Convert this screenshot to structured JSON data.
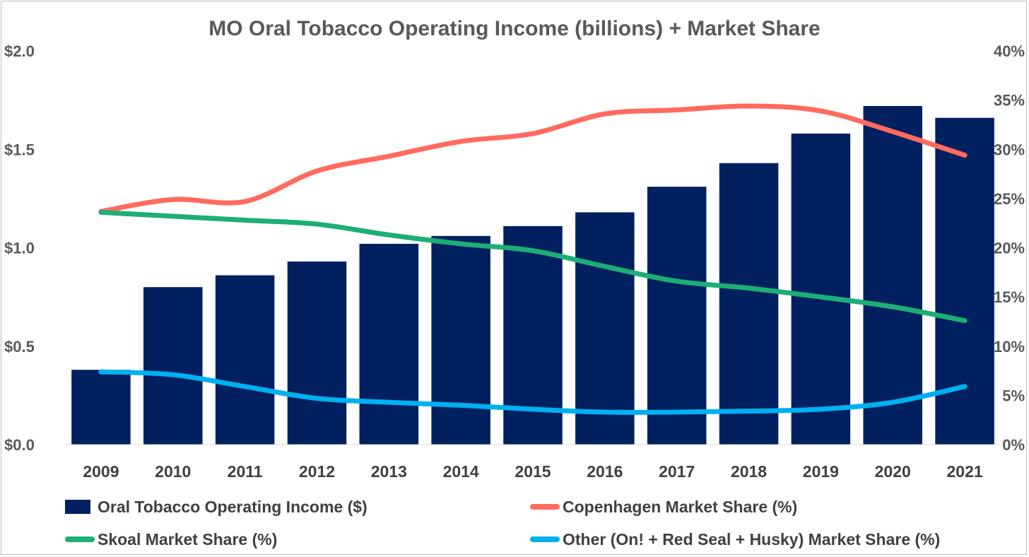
{
  "chart_data": {
    "type": "bar",
    "title": "MO Oral Tobacco Operating Income (billions) + Market Share",
    "categories": [
      "2009",
      "2010",
      "2011",
      "2012",
      "2013",
      "2014",
      "2015",
      "2016",
      "2017",
      "2018",
      "2019",
      "2020",
      "2021"
    ],
    "y_left": {
      "ylim": [
        0,
        2.0
      ],
      "ticks": [
        0.0,
        0.5,
        1.0,
        1.5,
        2.0
      ],
      "tick_labels": [
        "$0.0",
        "$0.5",
        "$1.0",
        "$1.5",
        "$2.0"
      ]
    },
    "y_right": {
      "ylim": [
        0,
        40
      ],
      "ticks": [
        0,
        5,
        10,
        15,
        20,
        25,
        30,
        35,
        40
      ],
      "tick_labels": [
        "0%",
        "5%",
        "10%",
        "15%",
        "20%",
        "25%",
        "30%",
        "35%",
        "40%"
      ]
    },
    "series": [
      {
        "name": "Oral Tobacco Operating Income ($)",
        "type": "bar",
        "axis": "left",
        "color": "#002060",
        "values": [
          0.38,
          0.8,
          0.86,
          0.93,
          1.02,
          1.06,
          1.11,
          1.18,
          1.31,
          1.43,
          1.58,
          1.72,
          1.66
        ]
      },
      {
        "name": "Copenhagen Market Share (%)",
        "type": "line",
        "axis": "right",
        "color": "#FF6B5E",
        "values": [
          23.7,
          24.9,
          24.7,
          27.8,
          29.3,
          30.8,
          31.6,
          33.6,
          34.0,
          34.4,
          33.9,
          31.8,
          29.4
        ]
      },
      {
        "name": "Skoal Market Share (%)",
        "type": "line",
        "axis": "right",
        "color": "#1DAE75",
        "values": [
          23.6,
          23.2,
          22.8,
          22.4,
          21.3,
          20.4,
          19.7,
          18.1,
          16.6,
          15.9,
          15.0,
          14.0,
          12.6
        ]
      },
      {
        "name": "Other (On! + Red Seal + Husky) Market Share (%)",
        "type": "line",
        "axis": "right",
        "color": "#00B0F0",
        "values": [
          7.4,
          7.1,
          5.9,
          4.7,
          4.3,
          4.0,
          3.6,
          3.3,
          3.3,
          3.4,
          3.6,
          4.3,
          5.9
        ]
      }
    ],
    "grid": false,
    "legend_position": "bottom"
  }
}
